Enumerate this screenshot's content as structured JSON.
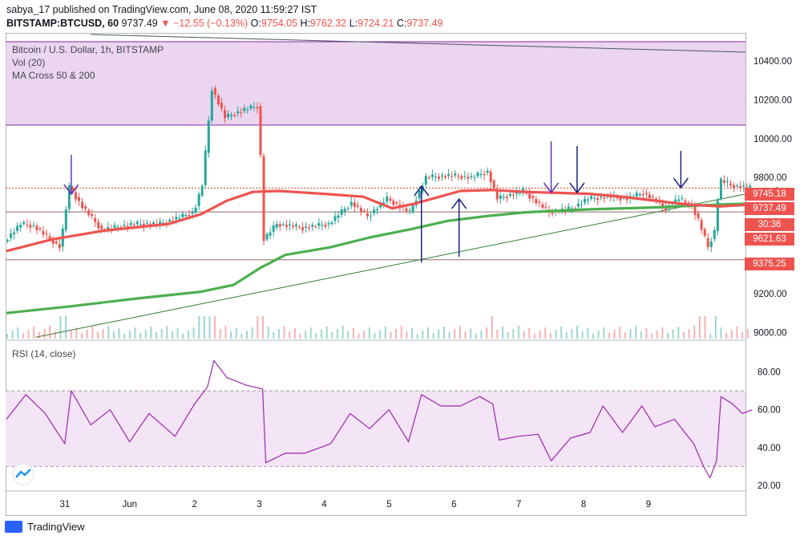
{
  "header": {
    "publisher": "sabya_17 published on TradingView.com, June 08, 2020 11:59:27 IST",
    "symbol": "BITSTAMP:BTCUSD, 60",
    "last": "9737.49",
    "change": "▼ −12.55 (−0.13%)",
    "o_label": "O:",
    "o_value": "9754.05",
    "h_label": "H:",
    "h_value": "9762.32",
    "l_label": "L:",
    "l_value": "9724.21",
    "c_label": "C:",
    "c_value": "9737.49"
  },
  "legend": {
    "title": "Bitcoin / U.S. Dollar, 1h, BITSTAMP",
    "volume": "Vol (20)",
    "ma": "MA Cross 50 & 200",
    "rsi": "RSI (14, close)"
  },
  "price_boxes": {
    "level_high": "9745.18",
    "last": "9737.49",
    "countdown": "30:36",
    "ma_value": "9621.63",
    "level_low": "9375.25"
  },
  "footer": {
    "brand": "TradingView"
  },
  "colors": {
    "up": "#26a69a",
    "down": "#ef5350",
    "ma50": "#ef5350",
    "ma200": "#4caf50",
    "zone": "#e1bee7",
    "rsi": "#9c27b0",
    "arrow": "#1a237e"
  },
  "chart_data": [
    {
      "type": "candlestick",
      "title": "Bitcoin / U.S. Dollar, 1h, BITSTAMP",
      "x_tick_labels": [
        "31",
        "Jun",
        "2",
        "3",
        "4",
        "5",
        "6",
        "7",
        "8",
        "9"
      ],
      "y_tick_labels": [
        "10400.00",
        "10200.00",
        "10000.00",
        "9800.00",
        "9200.00",
        "9000.00"
      ],
      "ylim": [
        8960,
        10500
      ],
      "close_path": [
        {
          "x": 0,
          "close": 9470
        },
        {
          "x": 0.25,
          "close": 9560
        },
        {
          "x": 0.45,
          "close": 9550
        },
        {
          "x": 0.86,
          "close": 9440
        },
        {
          "x": 1.0,
          "close": 9748
        },
        {
          "x": 1.2,
          "close": 9650
        },
        {
          "x": 1.5,
          "close": 9530
        },
        {
          "x": 2.0,
          "close": 9560
        },
        {
          "x": 2.4,
          "close": 9560
        },
        {
          "x": 2.92,
          "close": 9620
        },
        {
          "x": 3.05,
          "close": 9760
        },
        {
          "x": 3.2,
          "close": 10260
        },
        {
          "x": 3.4,
          "close": 10110
        },
        {
          "x": 3.7,
          "close": 10150
        },
        {
          "x": 3.92,
          "close": 10170
        },
        {
          "x": 4.0,
          "close": 9480
        },
        {
          "x": 4.2,
          "close": 9560
        },
        {
          "x": 4.6,
          "close": 9540
        },
        {
          "x": 5.0,
          "close": 9560
        },
        {
          "x": 5.35,
          "close": 9670
        },
        {
          "x": 5.6,
          "close": 9600
        },
        {
          "x": 5.9,
          "close": 9690
        },
        {
          "x": 6.25,
          "close": 9620
        },
        {
          "x": 6.5,
          "close": 9800
        },
        {
          "x": 6.9,
          "close": 9810
        },
        {
          "x": 7.2,
          "close": 9800
        },
        {
          "x": 7.45,
          "close": 9830
        },
        {
          "x": 7.6,
          "close": 9690
        },
        {
          "x": 8.0,
          "close": 9730
        },
        {
          "x": 8.4,
          "close": 9620
        },
        {
          "x": 8.75,
          "close": 9640
        },
        {
          "x": 9.0,
          "close": 9690
        },
        {
          "x": 9.3,
          "close": 9700
        },
        {
          "x": 9.6,
          "close": 9690
        },
        {
          "x": 9.85,
          "close": 9720
        },
        {
          "x": 10.0,
          "close": 9690
        },
        {
          "x": 10.2,
          "close": 9640
        },
        {
          "x": 10.4,
          "close": 9690
        },
        {
          "x": 10.6,
          "close": 9650
        },
        {
          "x": 10.7,
          "close": 9580
        },
        {
          "x": 10.85,
          "close": 9440
        },
        {
          "x": 10.97,
          "close": 9540
        },
        {
          "x": 11.02,
          "close": 9790
        },
        {
          "x": 11.2,
          "close": 9760
        },
        {
          "x": 11.5,
          "close": 9745
        }
      ],
      "ma_50": [
        {
          "x": 0,
          "y": 9420
        },
        {
          "x": 0.7,
          "y": 9480
        },
        {
          "x": 1.5,
          "y": 9525
        },
        {
          "x": 2.5,
          "y": 9560
        },
        {
          "x": 3.0,
          "y": 9610
        },
        {
          "x": 3.4,
          "y": 9680
        },
        {
          "x": 3.8,
          "y": 9725
        },
        {
          "x": 4.2,
          "y": 9730
        },
        {
          "x": 4.9,
          "y": 9715
        },
        {
          "x": 5.5,
          "y": 9700
        },
        {
          "x": 5.95,
          "y": 9640
        },
        {
          "x": 6.3,
          "y": 9665
        },
        {
          "x": 7.0,
          "y": 9730
        },
        {
          "x": 7.5,
          "y": 9735
        },
        {
          "x": 8.0,
          "y": 9725
        },
        {
          "x": 8.5,
          "y": 9720
        },
        {
          "x": 9.0,
          "y": 9715
        },
        {
          "x": 9.5,
          "y": 9700
        },
        {
          "x": 10.0,
          "y": 9680
        },
        {
          "x": 10.5,
          "y": 9660
        },
        {
          "x": 11.0,
          "y": 9650
        },
        {
          "x": 11.5,
          "y": 9660
        }
      ],
      "ma_200": [
        {
          "x": 0,
          "y": 9100
        },
        {
          "x": 1.0,
          "y": 9135
        },
        {
          "x": 2.0,
          "y": 9175
        },
        {
          "x": 3.0,
          "y": 9210
        },
        {
          "x": 3.5,
          "y": 9245
        },
        {
          "x": 3.9,
          "y": 9330
        },
        {
          "x": 4.3,
          "y": 9400
        },
        {
          "x": 5.0,
          "y": 9440
        },
        {
          "x": 5.6,
          "y": 9490
        },
        {
          "x": 6.2,
          "y": 9530
        },
        {
          "x": 6.8,
          "y": 9575
        },
        {
          "x": 7.4,
          "y": 9600
        },
        {
          "x": 8.0,
          "y": 9620
        },
        {
          "x": 9.0,
          "y": 9635
        },
        {
          "x": 10.0,
          "y": 9645
        },
        {
          "x": 11.0,
          "y": 9660
        },
        {
          "x": 11.5,
          "y": 9665
        }
      ],
      "horizontal_levels": [
        9745.18,
        9621.63,
        9375.25
      ],
      "resistance_zone": [
        10070,
        10550
      ],
      "rsi_series": [
        {
          "x": 0,
          "y": 55
        },
        {
          "x": 0.3,
          "y": 68
        },
        {
          "x": 0.6,
          "y": 58
        },
        {
          "x": 0.9,
          "y": 42
        },
        {
          "x": 1.0,
          "y": 70
        },
        {
          "x": 1.3,
          "y": 52
        },
        {
          "x": 1.6,
          "y": 60
        },
        {
          "x": 1.9,
          "y": 43
        },
        {
          "x": 2.2,
          "y": 58
        },
        {
          "x": 2.6,
          "y": 46
        },
        {
          "x": 2.9,
          "y": 63
        },
        {
          "x": 3.1,
          "y": 72
        },
        {
          "x": 3.2,
          "y": 86
        },
        {
          "x": 3.4,
          "y": 77
        },
        {
          "x": 3.7,
          "y": 73
        },
        {
          "x": 3.95,
          "y": 71
        },
        {
          "x": 4.0,
          "y": 32
        },
        {
          "x": 4.3,
          "y": 37
        },
        {
          "x": 4.6,
          "y": 37
        },
        {
          "x": 5.0,
          "y": 42
        },
        {
          "x": 5.3,
          "y": 58
        },
        {
          "x": 5.6,
          "y": 50
        },
        {
          "x": 5.9,
          "y": 60
        },
        {
          "x": 6.2,
          "y": 43
        },
        {
          "x": 6.4,
          "y": 68
        },
        {
          "x": 6.7,
          "y": 62
        },
        {
          "x": 7.0,
          "y": 62
        },
        {
          "x": 7.3,
          "y": 67
        },
        {
          "x": 7.5,
          "y": 63
        },
        {
          "x": 7.6,
          "y": 44
        },
        {
          "x": 7.9,
          "y": 46
        },
        {
          "x": 8.2,
          "y": 47
        },
        {
          "x": 8.4,
          "y": 33
        },
        {
          "x": 8.7,
          "y": 45
        },
        {
          "x": 9.0,
          "y": 48
        },
        {
          "x": 9.2,
          "y": 62
        },
        {
          "x": 9.5,
          "y": 48
        },
        {
          "x": 9.8,
          "y": 62
        },
        {
          "x": 10.0,
          "y": 51
        },
        {
          "x": 10.3,
          "y": 55
        },
        {
          "x": 10.6,
          "y": 42
        },
        {
          "x": 10.75,
          "y": 30
        },
        {
          "x": 10.85,
          "y": 24
        },
        {
          "x": 10.95,
          "y": 33
        },
        {
          "x": 11.02,
          "y": 67
        },
        {
          "x": 11.2,
          "y": 63
        },
        {
          "x": 11.35,
          "y": 58
        },
        {
          "x": 11.5,
          "y": 60
        }
      ],
      "rsi_tick_labels": [
        "80.00",
        "60.00",
        "40.00",
        "20.00"
      ],
      "rsi_bands": [
        70,
        30
      ],
      "rsi_ylim": [
        17,
        90
      ]
    }
  ]
}
